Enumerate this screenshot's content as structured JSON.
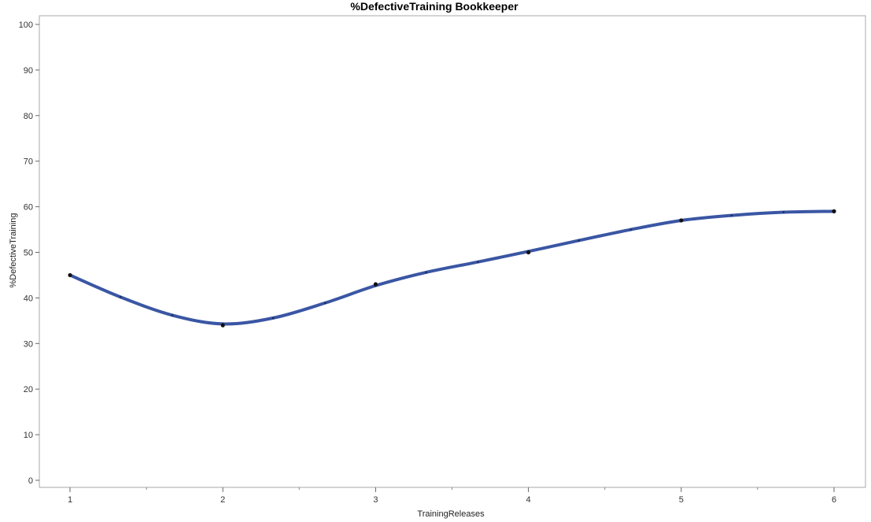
{
  "chart_data": {
    "type": "line",
    "title": "%DefectiveTraining Bookkeeper",
    "xlabel": "TrainingReleases",
    "ylabel": "%DefectiveTraining",
    "x_ticks": [
      "1",
      "2",
      "3",
      "4",
      "5",
      "6"
    ],
    "y_ticks": [
      "0",
      "10",
      "20",
      "30",
      "40",
      "50",
      "60",
      "70",
      "80",
      "90",
      "100"
    ],
    "xlim": [
      1,
      6
    ],
    "ylim": [
      0,
      100
    ],
    "grid": false,
    "points": [
      {
        "x": 1,
        "y": 45
      },
      {
        "x": 2,
        "y": 34
      },
      {
        "x": 3,
        "y": 43
      },
      {
        "x": 4,
        "y": 50
      },
      {
        "x": 5,
        "y": 57
      },
      {
        "x": 6,
        "y": 59
      }
    ],
    "smooth_curve": [
      {
        "x": 1,
        "y": 45
      },
      {
        "x": 1.33,
        "y": 40.2
      },
      {
        "x": 1.67,
        "y": 36.2
      },
      {
        "x": 2,
        "y": 34.3
      },
      {
        "x": 2.33,
        "y": 35.6
      },
      {
        "x": 2.67,
        "y": 38.9
      },
      {
        "x": 3,
        "y": 42.7
      },
      {
        "x": 3.33,
        "y": 45.6
      },
      {
        "x": 3.67,
        "y": 47.9
      },
      {
        "x": 4,
        "y": 50.2
      },
      {
        "x": 4.33,
        "y": 52.6
      },
      {
        "x": 4.67,
        "y": 55.0
      },
      {
        "x": 5,
        "y": 57.0
      },
      {
        "x": 5.33,
        "y": 58.1
      },
      {
        "x": 5.67,
        "y": 58.8
      },
      {
        "x": 6,
        "y": 59.0
      }
    ],
    "colors": {
      "curve": "#3a56a4",
      "points": "#111111",
      "frame": "#a9a9a9"
    }
  }
}
